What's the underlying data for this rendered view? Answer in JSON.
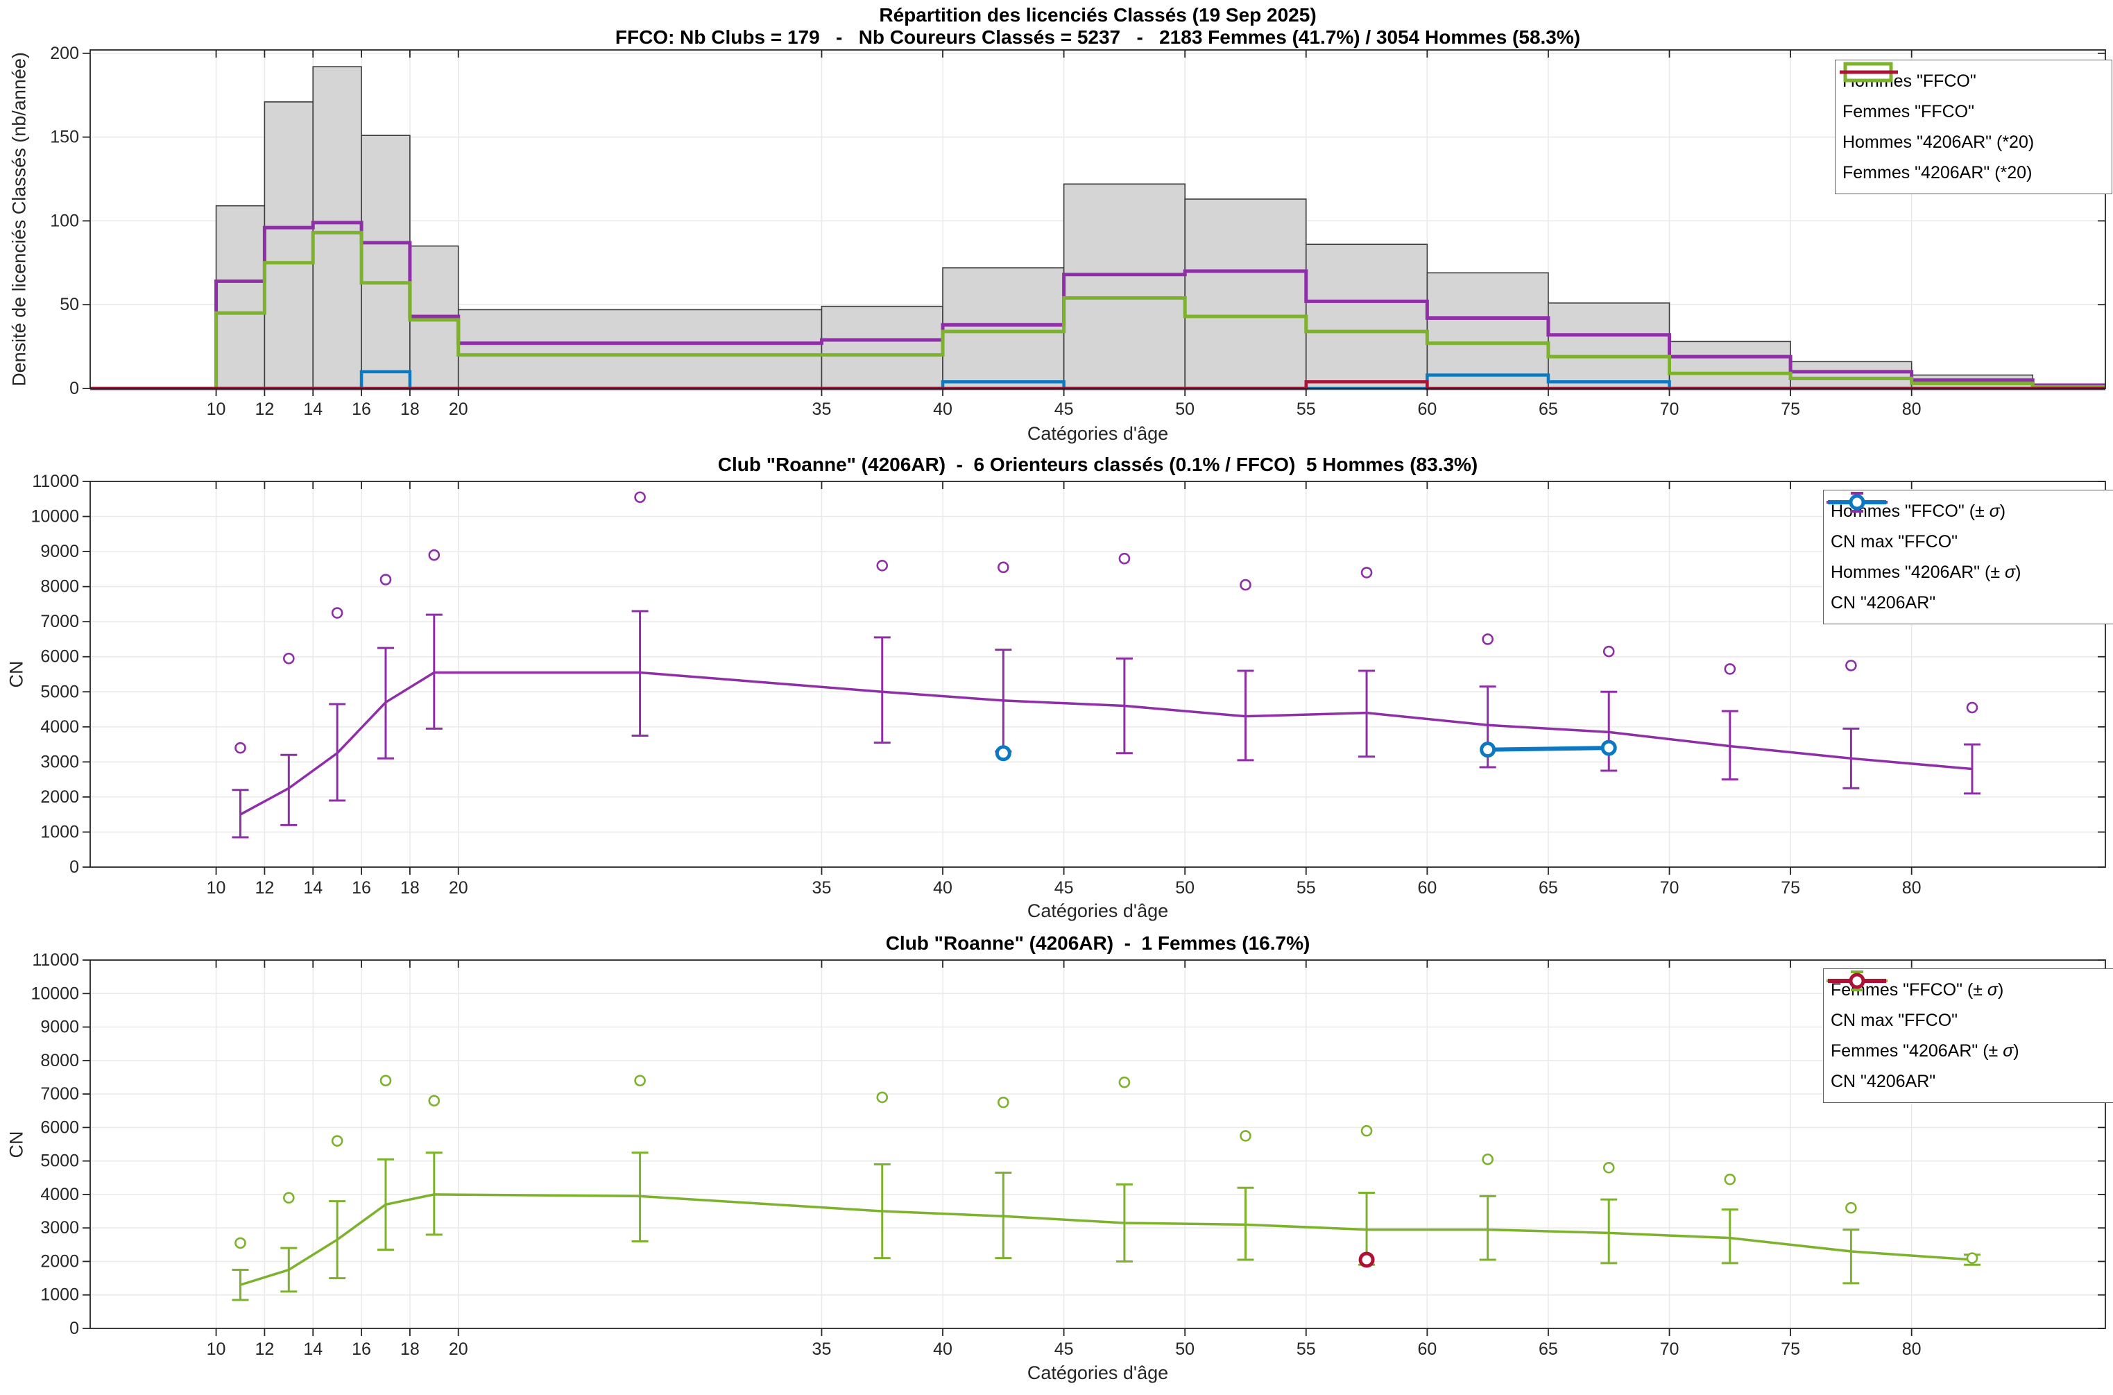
{
  "colors": {
    "hommes": "#8E2FA8",
    "femmes": "#7CB22C",
    "club_hommes": "#0A78C2",
    "club_femmes": "#AE1036",
    "bars_fill": "#D5D5D5",
    "bars_edge": "#3C3C3C",
    "axis": "#262626",
    "grid": "#E9E9E9",
    "background": "#FFFFFF"
  },
  "shared_x": {
    "xlabel": "Catégories d'âge",
    "xticks": [
      10,
      12,
      14,
      16,
      18,
      20,
      35,
      40,
      45,
      50,
      55,
      60,
      65,
      70,
      75,
      80
    ],
    "xlim": [
      4.8,
      88
    ]
  },
  "chart_data": [
    {
      "type": "bar",
      "title": "Répartition des licenciés Classés (19 Sep 2025)",
      "subtitle": "FFCO: Nb Clubs = 179   -   Nb Coureurs Classés = 5237   -   2183 Femmes (41.7%) / 3054 Hommes (58.3%)",
      "xlabel": "Catégories d'âge",
      "ylabel": "Densité de licenciés Classés (nb/année)",
      "ylim": [
        0,
        202
      ],
      "yticks": [
        0,
        50,
        100,
        150,
        200
      ],
      "grid": true,
      "legend_position": "top-right",
      "bin_edges": [
        10,
        12,
        14,
        16,
        18,
        20,
        35,
        40,
        45,
        50,
        55,
        60,
        65,
        70,
        75,
        80,
        85
      ],
      "tail_edge": 88,
      "series": [
        {
          "name": "Total classés (barres grises)",
          "style": "bars",
          "values": [
            109,
            171,
            192,
            151,
            85,
            47,
            49,
            72,
            122,
            113,
            86,
            69,
            51,
            28,
            16,
            8
          ]
        },
        {
          "name": "Hommes \"FFCO\"",
          "style": "stairs",
          "color": "hommes",
          "values": [
            64,
            96,
            99,
            87,
            43,
            27,
            29,
            38,
            68,
            70,
            52,
            42,
            32,
            19,
            10,
            5,
            2
          ]
        },
        {
          "name": "Femmes \"FFCO\"",
          "style": "stairs",
          "color": "femmes",
          "values": [
            45,
            75,
            93,
            63,
            41,
            20,
            20,
            34,
            54,
            43,
            34,
            27,
            19,
            9,
            6,
            3,
            1
          ]
        },
        {
          "name": "Hommes \"4206AR\" (*20)",
          "style": "stairs-baseline",
          "color": "club_hommes",
          "values": [
            0,
            0,
            0,
            10,
            0,
            0,
            0,
            4,
            0,
            0,
            0,
            8,
            4,
            0,
            0,
            0,
            0
          ]
        },
        {
          "name": "Femmes \"4206AR\" (*20)",
          "style": "stairs-baseline",
          "color": "club_femmes",
          "values": [
            0,
            0,
            0,
            0,
            0,
            0,
            0,
            0,
            0,
            0,
            4,
            0,
            0,
            0,
            0,
            0,
            0
          ]
        }
      ],
      "legend": [
        {
          "swatch": "box",
          "color": "hommes",
          "label": "Hommes \"FFCO\""
        },
        {
          "swatch": "box",
          "color": "femmes",
          "label": "Femmes \"FFCO\""
        },
        {
          "swatch": "line",
          "color": "club_hommes",
          "label": "Hommes \"4206AR\" (*20)"
        },
        {
          "swatch": "line",
          "color": "club_femmes",
          "label": "Femmes \"4206AR\" (*20)"
        }
      ]
    },
    {
      "type": "line",
      "title": "Club \"Roanne\" (4206AR)  -  6 Orienteurs classés (0.1% / FFCO)  5 Hommes (83.3%)",
      "xlabel": "Catégories d'âge",
      "ylabel": "CN",
      "ylim": [
        0,
        11000
      ],
      "yticks": [
        0,
        1000,
        2000,
        3000,
        4000,
        5000,
        6000,
        7000,
        8000,
        9000,
        10000,
        11000
      ],
      "grid": true,
      "legend_position": "top-right",
      "x": [
        11,
        13,
        15,
        17,
        19,
        27.5,
        37.5,
        42.5,
        47.5,
        52.5,
        57.5,
        62.5,
        67.5,
        72.5,
        77.5,
        82.5
      ],
      "mean": [
        1500,
        2250,
        3250,
        4700,
        5550,
        5550,
        5000,
        4750,
        4600,
        4300,
        4400,
        4050,
        3850,
        3450,
        3100,
        2800
      ],
      "lo": [
        850,
        1200,
        1900,
        3100,
        3950,
        3750,
        3550,
        3300,
        3250,
        3050,
        3150,
        2850,
        2750,
        2500,
        2250,
        2100
      ],
      "hi": [
        2200,
        3200,
        4650,
        6250,
        7200,
        7300,
        6550,
        6200,
        5950,
        5600,
        5600,
        5150,
        5000,
        4450,
        3950,
        3500
      ],
      "cn_max": [
        3400,
        5950,
        7250,
        8200,
        8900,
        10550,
        8600,
        8550,
        8800,
        8050,
        8400,
        6500,
        6150,
        5650,
        5750,
        4550
      ],
      "club": {
        "line_x": [
          62.5,
          67.5
        ],
        "line_y": [
          3350,
          3400
        ],
        "dots": [
          [
            42.5,
            3250
          ],
          [
            62.5,
            3350
          ],
          [
            67.5,
            3400
          ]
        ]
      },
      "legend": [
        {
          "swatch": "errorbar",
          "color": "hommes",
          "label": "Hommes \"FFCO\" (± σ)"
        },
        {
          "swatch": "dot",
          "color": "hommes",
          "label": "CN max \"FFCO\""
        },
        {
          "swatch": "line-thick",
          "color": "club_hommes",
          "label": "Hommes \"4206AR\" (± σ)"
        },
        {
          "swatch": "dot-bold",
          "color": "club_hommes",
          "label": "CN \"4206AR\""
        }
      ]
    },
    {
      "type": "line",
      "title": "Club \"Roanne\" (4206AR)  -  1 Femmes (16.7%)",
      "xlabel": "Catégories d'âge",
      "ylabel": "CN",
      "ylim": [
        0,
        11000
      ],
      "yticks": [
        0,
        1000,
        2000,
        3000,
        4000,
        5000,
        6000,
        7000,
        8000,
        9000,
        10000,
        11000
      ],
      "grid": true,
      "legend_position": "top-right",
      "x": [
        11,
        13,
        15,
        17,
        19,
        27.5,
        37.5,
        42.5,
        47.5,
        52.5,
        57.5,
        62.5,
        67.5,
        72.5,
        77.5,
        82.5
      ],
      "mean": [
        1300,
        1750,
        2650,
        3700,
        4000,
        3950,
        3500,
        3350,
        3150,
        3100,
        2950,
        2950,
        2850,
        2700,
        2300,
        2050
      ],
      "lo": [
        850,
        1100,
        1500,
        2350,
        2800,
        2600,
        2100,
        2100,
        2000,
        2050,
        1900,
        2050,
        1950,
        1950,
        1350,
        1900
      ],
      "hi": [
        1750,
        2400,
        3800,
        5050,
        5250,
        5250,
        4900,
        4650,
        4300,
        4200,
        4050,
        3950,
        3850,
        3550,
        2950,
        2200
      ],
      "cn_max": [
        2550,
        3900,
        5600,
        7400,
        6800,
        7400,
        6900,
        6750,
        7350,
        5750,
        5900,
        5050,
        4800,
        4450,
        3600,
        2100
      ],
      "club": {
        "line_x": null,
        "line_y": null,
        "dots": [
          [
            57.5,
            2050
          ]
        ]
      },
      "legend": [
        {
          "swatch": "errorbar",
          "color": "femmes",
          "label": "Femmes \"FFCO\" (± σ)"
        },
        {
          "swatch": "dot",
          "color": "femmes",
          "label": "CN max \"FFCO\""
        },
        {
          "swatch": "line-thick",
          "color": "club_femmes",
          "label": "Femmes \"4206AR\" (± σ)"
        },
        {
          "swatch": "dot-bold",
          "color": "club_femmes",
          "label": "CN \"4206AR\""
        }
      ]
    }
  ]
}
